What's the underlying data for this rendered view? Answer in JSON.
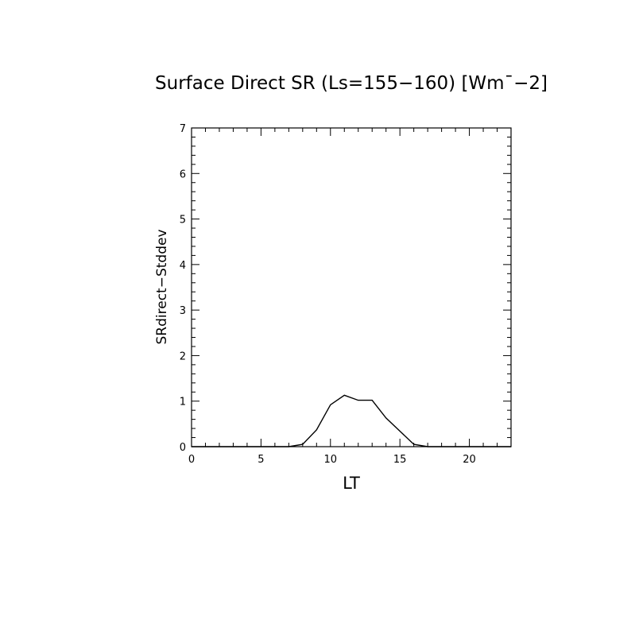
{
  "chart_data": {
    "type": "line",
    "title": "Surface Direct SR (Ls=155−160) [Wm¯−2]",
    "xlabel": "LT",
    "ylabel": "SRdirect−Stddev",
    "xlim": [
      0,
      23
    ],
    "ylim": [
      0,
      7
    ],
    "x_ticks": [
      0,
      5,
      10,
      15,
      20
    ],
    "x_tick_labels": [
      "0",
      "5",
      "10",
      "15",
      "20"
    ],
    "y_ticks": [
      0,
      1,
      2,
      3,
      4,
      5,
      6,
      7
    ],
    "y_tick_labels": [
      "0",
      "1",
      "2",
      "3",
      "4",
      "5",
      "6",
      "7"
    ],
    "grid": false,
    "line_color": "#000000",
    "x": [
      0,
      1,
      2,
      3,
      4,
      5,
      6,
      7,
      8,
      9,
      10,
      11,
      12,
      13,
      14,
      15,
      16,
      17,
      18,
      19,
      20,
      21,
      22,
      23
    ],
    "y": [
      0,
      0,
      0,
      0,
      0,
      0,
      0,
      0,
      0.05,
      0.37,
      0.92,
      1.13,
      1.02,
      1.02,
      0.63,
      0.34,
      0.05,
      0,
      0,
      0,
      0,
      0,
      0,
      0
    ]
  }
}
